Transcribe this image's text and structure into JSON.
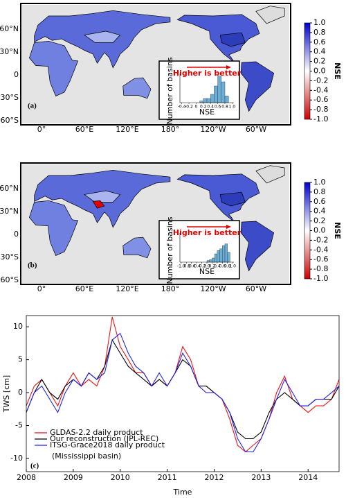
{
  "chart_data": [
    {
      "type": "map",
      "panel_label": "(a)",
      "lat_ticks": [
        "60°N",
        "30°N",
        "0",
        "30°S",
        "60°S"
      ],
      "lon_ticks": [
        "0°",
        "60°E",
        "120°E",
        "180°",
        "120°W",
        "60°W"
      ],
      "colorbar": {
        "label": "NSE",
        "lim": [
          -1,
          1
        ],
        "colors": [
          "#cc0000",
          "#ffffff",
          "#0000cc"
        ],
        "ticks": [
          {
            "value": 1,
            "label": "1.0"
          },
          0.8,
          0.6,
          0.4,
          0.2,
          {
            "value": 0,
            "label": "0.0"
          },
          -0.2,
          -0.4,
          -0.6,
          -0.8,
          {
            "value": -1,
            "label": "-1.0"
          }
        ]
      },
      "inset": {
        "type": "histogram",
        "annotation": "Higher is better",
        "xlabel": "NSE",
        "ylabel": "Number of basins",
        "color": "#6baed6",
        "bins": [
          0.1,
          0.2,
          0.3,
          0.4,
          0.5,
          0.6,
          0.7,
          0.8,
          0.9
        ],
        "counts": [
          2,
          5,
          5,
          10,
          20,
          32,
          25,
          8
        ],
        "xlim": [
          -0.45,
          1.05
        ],
        "ylim": [
          0,
          35
        ],
        "xticks": [
          -0.4,
          -0.2,
          0,
          0.2,
          0.4,
          0.6,
          0.8,
          {
            "value": 1,
            "label": "1.0"
          }
        ]
      }
    },
    {
      "type": "map",
      "panel_label": "(b)",
      "lat_ticks": [
        "60°N",
        "30°N",
        "0",
        "30°S",
        "60°S"
      ],
      "lon_ticks": [
        "0°",
        "60°E",
        "120°E",
        "180°",
        "120°W",
        "60°W"
      ],
      "colorbar": {
        "label": "NSE",
        "lim": [
          -1,
          1
        ],
        "colors": [
          "#cc0000",
          "#ffffff",
          "#0000cc"
        ],
        "ticks": [
          {
            "value": 1,
            "label": "1.0"
          },
          0.8,
          0.6,
          0.4,
          0.2,
          {
            "value": 0,
            "label": "0.0"
          },
          -0.2,
          -0.4,
          -0.6,
          -0.8,
          {
            "value": -1,
            "label": "-1.0"
          }
        ]
      },
      "inset": {
        "type": "histogram",
        "annotation": "Higher is better",
        "xlabel": "NSE",
        "ylabel": "Number of basins",
        "color": "#6baed6",
        "bins": [
          0.0,
          0.1,
          0.2,
          0.3,
          0.4,
          0.5,
          0.6,
          0.7,
          0.8,
          0.9
        ],
        "counts": [
          2,
          3,
          5,
          10,
          14,
          16,
          20,
          22,
          12
        ],
        "xlim": [
          -1.05,
          1.05
        ],
        "ylim": [
          0,
          35
        ],
        "xticks": [
          {
            "value": -1,
            "label": "-1.0"
          },
          -0.8,
          -0.6,
          -0.4,
          -0.2,
          {
            "value": 0,
            "label": "0.0"
          },
          0.2,
          0.4,
          0.6,
          0.8,
          {
            "value": 1,
            "label": "1.0"
          }
        ]
      }
    },
    {
      "type": "line",
      "panel_label": "(c)",
      "xlabel": "Time",
      "ylabel": "TWS [cm]",
      "annotation": "(Mississippi basin)",
      "xlim": [
        2008,
        2014.66
      ],
      "ylim": [
        -12,
        11.7
      ],
      "xticks": [
        2008,
        2009,
        2010,
        2011,
        2012,
        2013,
        2014
      ],
      "yticks": [
        10,
        5,
        0,
        -5,
        -10
      ],
      "x": [
        2008,
        2008.17,
        2008.33,
        2008.5,
        2008.67,
        2008.83,
        2009,
        2009.17,
        2009.33,
        2009.5,
        2009.67,
        2009.83,
        2010,
        2010.17,
        2010.33,
        2010.5,
        2010.67,
        2010.83,
        2011,
        2011.17,
        2011.33,
        2011.5,
        2011.67,
        2011.83,
        2012,
        2012.17,
        2012.33,
        2012.5,
        2012.67,
        2012.83,
        2013,
        2013.17,
        2013.33,
        2013.5,
        2013.67,
        2013.83,
        2014,
        2014.17,
        2014.33,
        2014.5,
        2014.66
      ],
      "series": [
        {
          "name": "GLDAS-2.2 daily product",
          "color": "#ee1111",
          "values": [
            -2,
            1,
            2,
            0,
            -2,
            1,
            3,
            1,
            2,
            1,
            4,
            11.5,
            7,
            5,
            3,
            3,
            1,
            2,
            1,
            3,
            7,
            5,
            1,
            1,
            0,
            -1,
            -4,
            -8,
            -9,
            -8,
            -7,
            -4,
            0,
            2.5,
            -1,
            -2,
            -3,
            -2,
            -2,
            -1,
            2
          ]
        },
        {
          "name": "Our reconstruction (JPL-REC)",
          "color": "#000000",
          "values": [
            -3,
            0,
            2,
            0,
            -1,
            1,
            2,
            1,
            3,
            2,
            4,
            8,
            6,
            4,
            3,
            2,
            1,
            2,
            1,
            3,
            5,
            4,
            1,
            1,
            0,
            -1,
            -3,
            -6,
            -7,
            -7,
            -6,
            -3,
            -1,
            0,
            -1,
            -2,
            -2,
            -1,
            -1,
            -1,
            1
          ]
        },
        {
          "name": "ITSG-Grace2018 daily product",
          "color": "#2222ee",
          "values": [
            -3,
            0,
            1,
            -1,
            -3,
            0,
            2,
            1,
            3,
            2,
            3,
            8,
            9,
            6,
            4,
            3,
            1,
            3,
            1,
            3,
            6,
            4,
            1,
            0,
            0,
            -1,
            -3,
            -7,
            -9,
            -9,
            -7,
            -4,
            -1,
            2,
            0,
            -2,
            -2,
            -1,
            -1,
            0,
            1
          ]
        }
      ]
    }
  ]
}
